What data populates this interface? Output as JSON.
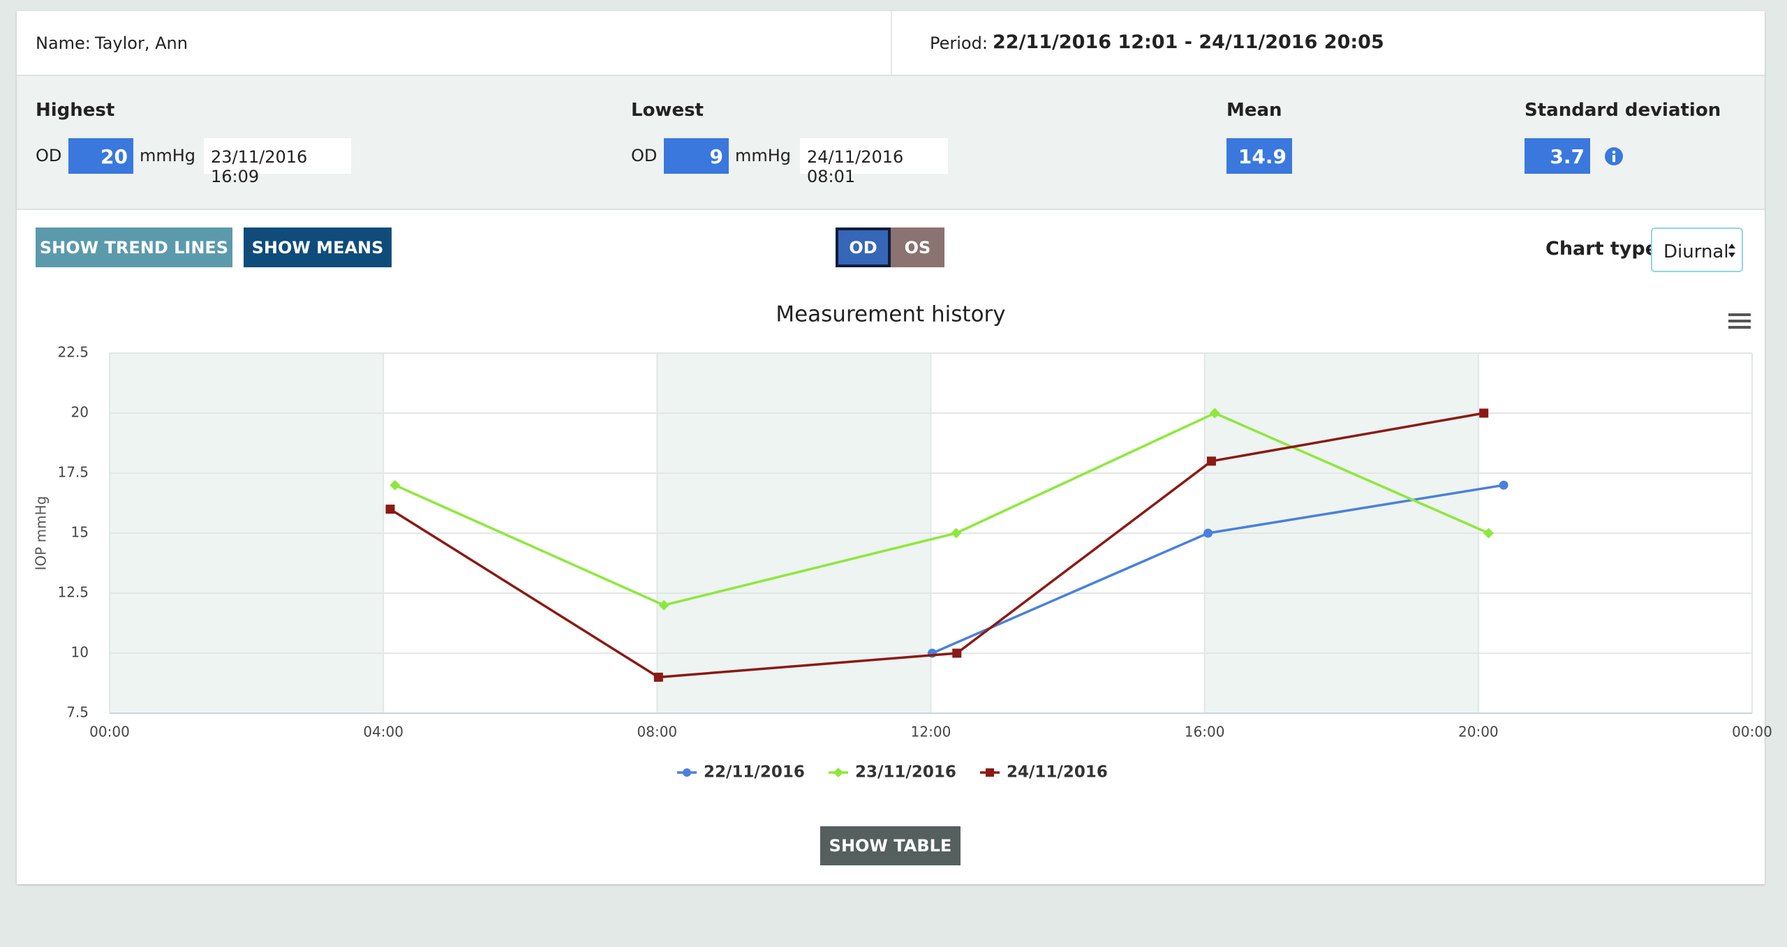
{
  "header": {
    "name_label": "Name:",
    "name": "Taylor, Ann",
    "period_label": "Period:",
    "period": "22/11/2016 12:01 - 24/11/2016 20:05"
  },
  "stats": {
    "highest": {
      "title": "Highest",
      "eye": "OD",
      "value": 20,
      "unit": "mmHg",
      "date": "23/11/2016 16:09"
    },
    "lowest": {
      "title": "Lowest",
      "eye": "OD",
      "value": 9,
      "unit": "mmHg",
      "date": "24/11/2016 08:01"
    },
    "mean": {
      "title": "Mean",
      "value": 14.9
    },
    "std": {
      "title": "Standard deviation",
      "value": 3.7
    }
  },
  "controls": {
    "trend": "SHOW TREND LINES",
    "means": "SHOW MEANS",
    "eyes": [
      "OD",
      "OS"
    ],
    "chart_type_label": "Chart type",
    "chart_type": "Diurnal",
    "show_table": "SHOW TABLE"
  },
  "chart_data": {
    "type": "line",
    "title": "Measurement history",
    "y_label": "IOP mmHg",
    "xlim": [
      0,
      24
    ],
    "xticks": [
      {
        "value": 0,
        "label": "00:00"
      },
      {
        "value": 4,
        "label": "04:00"
      },
      {
        "value": 8,
        "label": "08:00"
      },
      {
        "value": 12,
        "label": "12:00"
      },
      {
        "value": 16,
        "label": "16:00"
      },
      {
        "value": 20,
        "label": "20:00"
      },
      {
        "value": 24,
        "label": "00:00"
      }
    ],
    "ylim": [
      7.5,
      22.5
    ],
    "yticks": [
      7.5,
      10,
      12.5,
      15,
      17.5,
      20,
      22.5
    ],
    "grid": true,
    "series": [
      {
        "name": "22/11/2016",
        "color": "#4a80dc",
        "marker": "circle",
        "x": [
          12.02,
          16.05,
          20.37
        ],
        "values": [
          10,
          15,
          17
        ]
      },
      {
        "name": "23/11/2016",
        "color": "#8ee83c",
        "marker": "diamond",
        "x": [
          4.17,
          8.1,
          12.37,
          16.15,
          20.15
        ],
        "values": [
          17,
          12,
          15,
          20,
          15
        ]
      },
      {
        "name": "24/11/2016",
        "color": "#8b1a14",
        "marker": "square",
        "x": [
          4.1,
          8.02,
          12.38,
          16.1,
          20.08
        ],
        "values": [
          16,
          9,
          10,
          18,
          20
        ]
      }
    ]
  }
}
